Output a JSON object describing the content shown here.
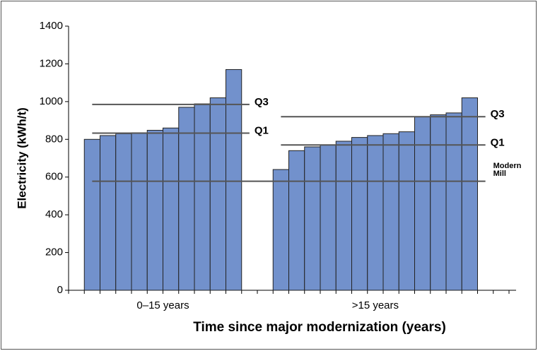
{
  "chart_data": {
    "type": "bar",
    "y_label": "Electricity (kWh/t)",
    "x_label": "Time since major modernization (years)",
    "color": "#7291cc",
    "ylim": [
      0,
      1400
    ],
    "yticks": [
      0,
      200,
      400,
      600,
      800,
      1000,
      1200,
      1400
    ],
    "groups": [
      {
        "category": "0–15 years",
        "values": [
          800,
          820,
          830,
          835,
          848,
          860,
          970,
          988,
          1020,
          1170
        ],
        "lines": [
          {
            "label": "Q3",
            "value": 985
          },
          {
            "label": "Q1",
            "value": 833
          }
        ]
      },
      {
        "category": ">15 years",
        "values": [
          640,
          740,
          760,
          770,
          790,
          810,
          820,
          830,
          840,
          920,
          930,
          940,
          1020
        ],
        "lines": [
          {
            "label": "Q3",
            "value": 920
          },
          {
            "label": "Q1",
            "value": 770
          }
        ]
      }
    ],
    "reference_lines": [
      {
        "label": "Modern Mill",
        "value": 578
      }
    ]
  }
}
